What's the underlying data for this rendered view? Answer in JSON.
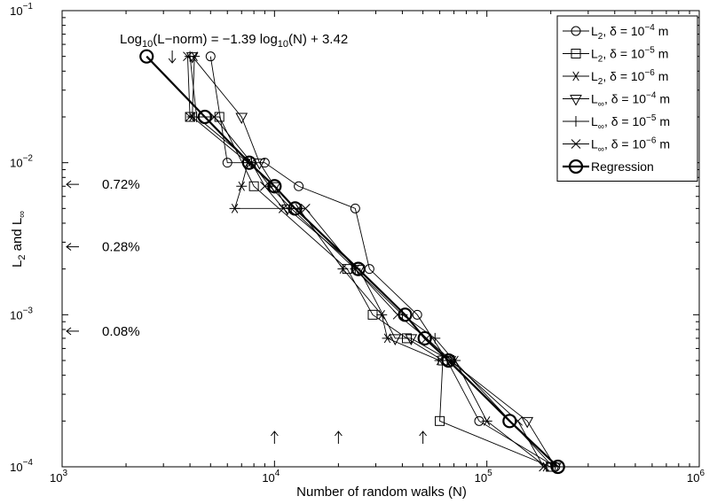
{
  "chart_data": {
    "type": "line",
    "xscale": "log",
    "yscale": "log",
    "xlim": [
      1000,
      1000000
    ],
    "ylim": [
      0.0001,
      0.1
    ],
    "xlabel": "Number of random walks (N)",
    "ylabel_parts": {
      "base": "L",
      "sub1": "2",
      "mid": " and L",
      "sub2": "∞"
    },
    "grid": false,
    "legend_position": "top-right",
    "x_tick_labels": [
      {
        "value": 1000,
        "base": "10",
        "exp": "3"
      },
      {
        "value": 10000,
        "base": "10",
        "exp": "4"
      },
      {
        "value": 100000,
        "base": "10",
        "exp": "5"
      },
      {
        "value": 1000000,
        "base": "10",
        "exp": "6"
      }
    ],
    "y_tick_labels": [
      {
        "value": 0.0001,
        "base": "10",
        "exp": "−4"
      },
      {
        "value": 0.001,
        "base": "10",
        "exp": "−3"
      },
      {
        "value": 0.01,
        "base": "10",
        "exp": "−2"
      },
      {
        "value": 0.1,
        "base": "10",
        "exp": "−1"
      }
    ],
    "regression_equation": {
      "prefix": "Log",
      "sub": "10",
      "rest": "(L−norm) = −1.39 log",
      "sub2": "10",
      "suffix": "(N) + 3.42"
    },
    "arrow_annotations_left": [
      {
        "label": "0.72%",
        "y": 0.0072
      },
      {
        "label": "0.28%",
        "y": 0.0028
      },
      {
        "label": "0.08%",
        "y": 0.00078
      }
    ],
    "arrow_annotations_bottom_x": [
      10000,
      20000,
      50000
    ],
    "arrow_annotation_top_x": 3300,
    "series": [
      {
        "legend": {
          "norm": "L",
          "sub": "2",
          "delta": "10",
          "exp": "−4",
          "unit": "m"
        },
        "marker": "circle",
        "lw": 1,
        "color": "#000000",
        "x": [
          5000,
          6000,
          9000,
          13000,
          24000,
          28000,
          47000,
          65000,
          92000,
          210000
        ],
        "y": [
          0.05,
          0.01,
          0.01,
          0.007,
          0.005,
          0.002,
          0.001,
          0.0005,
          0.0002,
          0.0001
        ]
      },
      {
        "legend": {
          "norm": "L",
          "sub": "2",
          "delta": "10",
          "exp": "−5",
          "unit": "m"
        },
        "marker": "square",
        "lw": 1,
        "color": "#000000",
        "x": [
          4000,
          5500,
          8000,
          22000,
          29000,
          42000,
          62000,
          60000,
          200000
        ],
        "y": [
          0.02,
          0.02,
          0.007,
          0.002,
          0.001,
          0.0007,
          0.0005,
          0.0002,
          0.0001
        ]
      },
      {
        "legend": {
          "norm": "L",
          "sub": "2",
          "delta": "10",
          "exp": "−6",
          "unit": "m"
        },
        "marker": "asterisk",
        "lw": 1,
        "color": "#000000",
        "x": [
          4200,
          4100,
          7500,
          7000,
          6500,
          13000,
          21000,
          32000,
          34000,
          60000,
          71000,
          100000,
          190000
        ],
        "y": [
          0.05,
          0.02,
          0.01,
          0.007,
          0.005,
          0.005,
          0.002,
          0.001,
          0.0007,
          0.0005,
          0.0005,
          0.0002,
          0.0001
        ]
      },
      {
        "legend": {
          "norm": "L",
          "sub": "∞",
          "delta": "10",
          "exp": "−4",
          "unit": "m"
        },
        "marker": "triangle",
        "lw": 1,
        "color": "#000000",
        "x": [
          4100,
          7000,
          8500,
          10000,
          11500,
          25000,
          37000,
          44000,
          67000,
          155000,
          210000
        ],
        "y": [
          0.05,
          0.02,
          0.01,
          0.007,
          0.005,
          0.002,
          0.0007,
          0.0007,
          0.0005,
          0.0002,
          0.0001
        ]
      },
      {
        "legend": {
          "norm": "L",
          "sub": "∞",
          "delta": "10",
          "exp": "−5",
          "unit": "m"
        },
        "marker": "plus",
        "lw": 1,
        "color": "#000000",
        "x": [
          4000,
          4300,
          7800,
          9500,
          12000,
          24000,
          40000,
          57000,
          70000,
          205000
        ],
        "y": [
          0.05,
          0.02,
          0.01,
          0.007,
          0.005,
          0.002,
          0.001,
          0.0007,
          0.0005,
          0.0001
        ]
      },
      {
        "legend": {
          "norm": "L",
          "sub": "∞",
          "delta": "10",
          "exp": "−6",
          "unit": "m"
        },
        "marker": "cross",
        "lw": 1,
        "color": "#000000",
        "x": [
          3900,
          4000,
          5200,
          7800,
          9000,
          11000,
          14000,
          24000,
          38000,
          52000,
          68000,
          140000,
          185000
        ],
        "y": [
          0.05,
          0.02,
          0.02,
          0.01,
          0.007,
          0.005,
          0.005,
          0.002,
          0.001,
          0.0007,
          0.0005,
          0.0002,
          0.0001
        ]
      },
      {
        "legend": {
          "label": "Regression"
        },
        "marker": "bigcircle",
        "lw": 2,
        "color": "#000000",
        "x": [
          2500,
          4700,
          7600,
          10000,
          12500,
          24800,
          41200,
          51000,
          66000,
          128000,
          216000
        ],
        "y": [
          0.05,
          0.02,
          0.01,
          0.007,
          0.005,
          0.002,
          0.001,
          0.0007,
          0.0005,
          0.0002,
          0.0001
        ]
      }
    ]
  }
}
